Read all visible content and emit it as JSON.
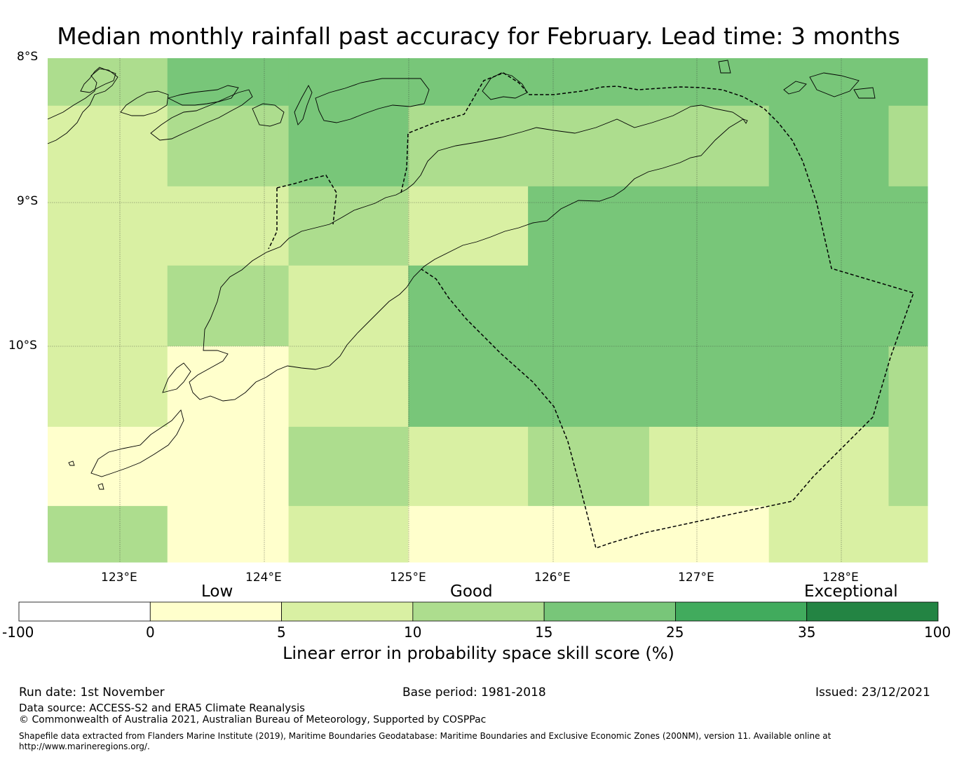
{
  "title": "Median monthly rainfall past accuracy for February. Lead time: 3 months",
  "map": {
    "lat_labels": [
      "8°S",
      "9°S",
      "10°S"
    ],
    "lon_labels": [
      "123°E",
      "124°E",
      "125°E",
      "126°E",
      "127°E",
      "128°E"
    ],
    "lon_range": [
      122.5,
      128.6
    ],
    "lat_range": [
      -8.0,
      -11.5
    ],
    "boundary_style": "dashed",
    "coastline_color": "#000000",
    "grid_columns_lon_edges": [
      122.5,
      123.33,
      124.17,
      125.0,
      125.83,
      126.67,
      127.5,
      128.33,
      128.6
    ],
    "grid_rows_lat_edges": [
      -8.0,
      -8.33,
      -8.89,
      -9.44,
      -10.0,
      -10.56,
      -11.11,
      -11.5
    ],
    "skill_category_grid": [
      [
        2,
        3,
        3,
        3,
        3,
        3,
        3,
        3
      ],
      [
        1,
        2,
        3,
        2,
        2,
        2,
        3,
        2
      ],
      [
        1,
        1,
        2,
        1,
        3,
        3,
        3,
        3
      ],
      [
        1,
        2,
        1,
        3,
        3,
        3,
        3,
        3
      ],
      [
        1,
        0,
        1,
        3,
        3,
        3,
        3,
        2
      ],
      [
        0,
        0,
        2,
        1,
        2,
        1,
        1,
        2
      ],
      [
        2,
        0,
        1,
        0,
        0,
        0,
        1,
        1
      ]
    ]
  },
  "legend": {
    "words": [
      "Low",
      "Good",
      "Exceptional"
    ],
    "ticks": [
      "-100",
      "0",
      "5",
      "10",
      "15",
      "25",
      "35",
      "100"
    ],
    "colors": [
      "#ffffff",
      "#ffffcc",
      "#d9f0a3",
      "#addd8e",
      "#78c679",
      "#41ab5d",
      "#238443"
    ],
    "title": "Linear error in probability space skill score (%)"
  },
  "footer": {
    "run_date": "Run date: 1st November",
    "base_period": "Base period: 1981-2018",
    "issued": "Issued: 23/12/2021",
    "data_source": "Data source: ACCESS-S2 and ERA5 Climate Reanalysis",
    "copyright": "© Commonwealth of Australia 2021, Australian Bureau of Meteorology, Supported by COSPPac",
    "shapefile_line1": "Shapefile data extracted from Flanders Marine Institute (2019), Maritime Boundaries Geodatabase: Maritime Boundaries and Exclusive Economic Zones (200NM), version 11. Available online at",
    "shapefile_line2": "http://www.marineregions.org/."
  }
}
